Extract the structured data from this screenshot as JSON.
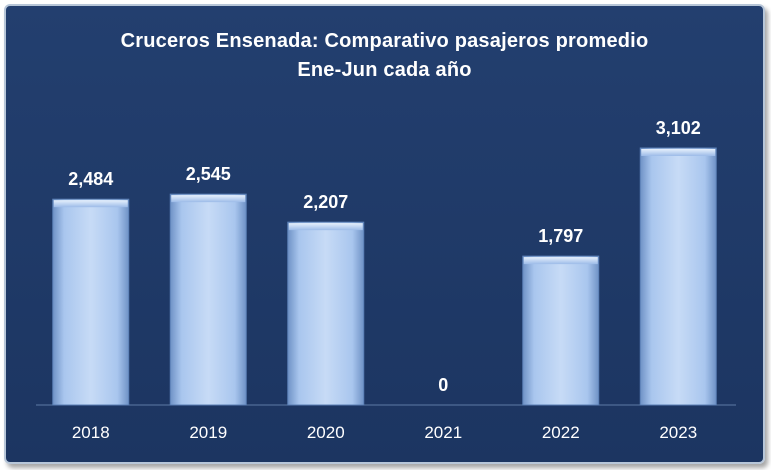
{
  "chart_data": {
    "type": "bar",
    "title_line1": "Cruceros Ensenada: Comparativo pasajeros promedio",
    "title_line2": "Ene-Jun cada año",
    "xlabel": "",
    "ylabel": "",
    "categories": [
      "2018",
      "2019",
      "2020",
      "2021",
      "2022",
      "2023"
    ],
    "values": [
      2484,
      2545,
      2207,
      0,
      1797,
      3102
    ],
    "value_labels": [
      "2,484",
      "2,545",
      "2,207",
      "0",
      "1,797",
      "3,102"
    ],
    "ylim": [
      0,
      3102
    ],
    "grid": false,
    "legend": "none",
    "colors": {
      "background": "#1f3a68",
      "bar_fill": "#8fb2e4",
      "bar_highlight": "#c9dcf6",
      "text": "#ffffff"
    }
  }
}
